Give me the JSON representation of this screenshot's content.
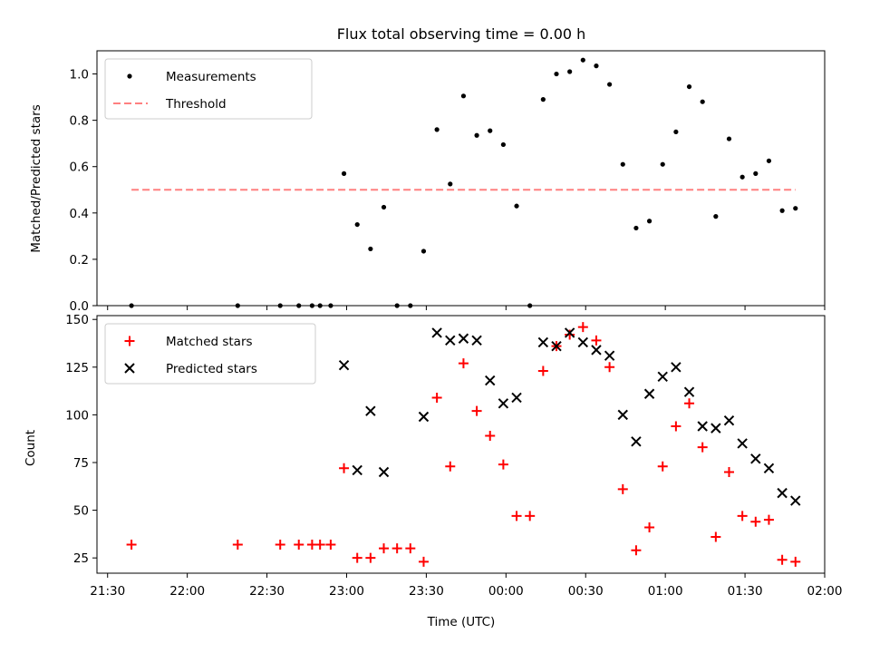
{
  "chart_data": [
    {
      "type": "scatter",
      "title": "Flux total observing time = 0.00 h",
      "xlabel": "",
      "ylabel": "Matched/Predicted stars",
      "xlim": [
        "21:26",
        "02:00"
      ],
      "ylim": [
        0,
        1.1
      ],
      "yticks": [
        "0.0",
        "0.2",
        "0.4",
        "0.6",
        "0.8",
        "1.0"
      ],
      "legend_position": "top-left",
      "series": [
        {
          "name": "Measurements",
          "marker": "dot",
          "color": "#000000",
          "points": [
            [
              "21:39",
              0.0
            ],
            [
              "22:19",
              0.0
            ],
            [
              "22:35",
              0.0
            ],
            [
              "22:42",
              0.0
            ],
            [
              "22:47",
              0.0
            ],
            [
              "22:50",
              0.0
            ],
            [
              "22:54",
              0.0
            ],
            [
              "22:59",
              0.57
            ],
            [
              "23:04",
              0.35
            ],
            [
              "23:09",
              0.245
            ],
            [
              "23:14",
              0.425
            ],
            [
              "23:19",
              0.0
            ],
            [
              "23:24",
              0.0
            ],
            [
              "23:29",
              0.235
            ],
            [
              "23:34",
              0.76
            ],
            [
              "23:39",
              0.525
            ],
            [
              "23:44",
              0.905
            ],
            [
              "23:49",
              0.735
            ],
            [
              "23:54",
              0.755
            ],
            [
              "23:59",
              0.695
            ],
            [
              "00:04",
              0.43
            ],
            [
              "00:09",
              0.0
            ],
            [
              "00:14",
              0.89
            ],
            [
              "00:19",
              1.0
            ],
            [
              "00:24",
              1.01
            ],
            [
              "00:29",
              1.06
            ],
            [
              "00:34",
              1.035
            ],
            [
              "00:39",
              0.955
            ],
            [
              "00:44",
              0.61
            ],
            [
              "00:49",
              0.335
            ],
            [
              "00:54",
              0.365
            ],
            [
              "00:59",
              0.61
            ],
            [
              "01:04",
              0.75
            ],
            [
              "01:09",
              0.945
            ],
            [
              "01:14",
              0.88
            ],
            [
              "01:19",
              0.385
            ],
            [
              "01:24",
              0.72
            ],
            [
              "01:29",
              0.555
            ],
            [
              "01:34",
              0.57
            ],
            [
              "01:39",
              0.625
            ],
            [
              "01:44",
              0.41
            ],
            [
              "01:49",
              0.42
            ]
          ]
        },
        {
          "name": "Threshold",
          "line": "dashed",
          "color": "#ff8080",
          "points": [
            [
              "21:39",
              0.5
            ],
            [
              "01:49",
              0.5
            ]
          ]
        }
      ]
    },
    {
      "type": "scatter",
      "title": "",
      "xlabel": "Time (UTC)",
      "ylabel": "Count",
      "xlim": [
        "21:26",
        "02:00"
      ],
      "ylim": [
        17,
        152
      ],
      "yticks": [
        "25",
        "50",
        "75",
        "100",
        "125",
        "150"
      ],
      "xticks": [
        "21:30",
        "22:00",
        "22:30",
        "23:00",
        "23:30",
        "00:00",
        "00:30",
        "01:00",
        "01:30",
        "02:00"
      ],
      "legend_position": "top-left",
      "series": [
        {
          "name": "Matched stars",
          "marker": "plus",
          "color": "#ff0000",
          "points": [
            [
              "21:39",
              32
            ],
            [
              "22:19",
              32
            ],
            [
              "22:35",
              32
            ],
            [
              "22:42",
              32
            ],
            [
              "22:47",
              32
            ],
            [
              "22:50",
              32
            ],
            [
              "22:54",
              32
            ],
            [
              "22:59",
              72
            ],
            [
              "23:04",
              25
            ],
            [
              "23:09",
              25
            ],
            [
              "23:14",
              30
            ],
            [
              "23:19",
              30
            ],
            [
              "23:24",
              30
            ],
            [
              "23:29",
              23
            ],
            [
              "23:34",
              109
            ],
            [
              "23:39",
              73
            ],
            [
              "23:44",
              127
            ],
            [
              "23:49",
              102
            ],
            [
              "23:54",
              89
            ],
            [
              "23:59",
              74
            ],
            [
              "00:04",
              47
            ],
            [
              "00:09",
              47
            ],
            [
              "00:14",
              123
            ],
            [
              "00:19",
              136
            ],
            [
              "00:24",
              142
            ],
            [
              "00:29",
              146
            ],
            [
              "00:34",
              139
            ],
            [
              "00:39",
              125
            ],
            [
              "00:44",
              61
            ],
            [
              "00:49",
              29
            ],
            [
              "00:54",
              41
            ],
            [
              "00:59",
              73
            ],
            [
              "01:04",
              94
            ],
            [
              "01:09",
              106
            ],
            [
              "01:14",
              83
            ],
            [
              "01:19",
              36
            ],
            [
              "01:24",
              70
            ],
            [
              "01:29",
              47
            ],
            [
              "01:34",
              44
            ],
            [
              "01:39",
              45
            ],
            [
              "01:44",
              24
            ],
            [
              "01:49",
              23
            ]
          ]
        },
        {
          "name": "Predicted stars",
          "marker": "x",
          "color": "#000000",
          "points": [
            [
              "22:59",
              126
            ],
            [
              "23:04",
              71
            ],
            [
              "23:09",
              102
            ],
            [
              "23:14",
              70
            ],
            [
              "23:29",
              99
            ],
            [
              "23:34",
              143
            ],
            [
              "23:39",
              139
            ],
            [
              "23:44",
              140
            ],
            [
              "23:49",
              139
            ],
            [
              "23:54",
              118
            ],
            [
              "23:59",
              106
            ],
            [
              "00:04",
              109
            ],
            [
              "00:14",
              138
            ],
            [
              "00:19",
              136
            ],
            [
              "00:24",
              143
            ],
            [
              "00:29",
              138
            ],
            [
              "00:34",
              134
            ],
            [
              "00:39",
              131
            ],
            [
              "00:44",
              100
            ],
            [
              "00:49",
              86
            ],
            [
              "00:54",
              111
            ],
            [
              "00:59",
              120
            ],
            [
              "01:04",
              125
            ],
            [
              "01:09",
              112
            ],
            [
              "01:14",
              94
            ],
            [
              "01:19",
              93
            ],
            [
              "01:24",
              97
            ],
            [
              "01:29",
              85
            ],
            [
              "01:34",
              77
            ],
            [
              "01:39",
              72
            ],
            [
              "01:44",
              59
            ],
            [
              "01:49",
              55
            ]
          ]
        }
      ]
    }
  ]
}
